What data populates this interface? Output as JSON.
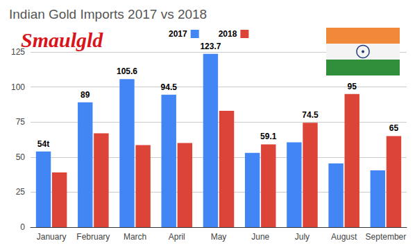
{
  "chart_data": {
    "type": "bar",
    "title": "Indian Gold Imports 2017 vs 2018",
    "annotations": [
      "Smaulgld"
    ],
    "categories": [
      "January",
      "February",
      "March",
      "April",
      "May",
      "June",
      "July",
      "August",
      "September"
    ],
    "series": [
      {
        "name": "2017",
        "color": "#4285f4",
        "values": [
          54,
          89,
          105.6,
          94.5,
          123.7,
          53,
          60.5,
          45.5,
          40.5
        ],
        "value_labels": [
          "54t",
          "89",
          "105.6",
          "94.5",
          "123.7",
          null,
          null,
          null,
          null
        ]
      },
      {
        "name": "2018",
        "color": "#db4437",
        "values": [
          39,
          67,
          58.5,
          60,
          83,
          59.1,
          74.5,
          95,
          65
        ],
        "value_labels": [
          null,
          null,
          null,
          null,
          null,
          "59.1",
          "74.5",
          "95",
          "65"
        ]
      }
    ],
    "ylim": [
      0,
      125
    ],
    "yticks": [
      0,
      25,
      50,
      75,
      100,
      125
    ],
    "grid": true,
    "legend": "top",
    "data_labels": true
  }
}
